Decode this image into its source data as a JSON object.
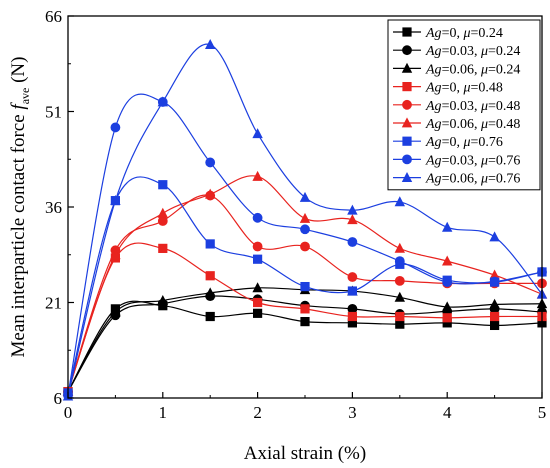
{
  "chart_data": {
    "type": "line",
    "xlabel": "Axial strain (%)",
    "ylabel_main": "Mean interparticle contact force ",
    "ylabel_symbol": "f",
    "ylabel_sub": "ave",
    "ylabel_unit": " (N)",
    "xlim": [
      0,
      5
    ],
    "ylim": [
      6,
      66
    ],
    "xticks": [
      "0",
      "1",
      "2",
      "3",
      "4",
      "5"
    ],
    "yticks": [
      "6",
      "21",
      "36",
      "51",
      "66"
    ],
    "x": [
      0,
      0.5,
      1,
      1.5,
      2,
      2.5,
      3,
      3.5,
      4,
      4.5,
      5
    ],
    "legend_position": "top-right",
    "series": [
      {
        "name": "Ag=0, μ=0.24",
        "ag": "0",
        "mu": "0.24",
        "color": "#000000",
        "marker": "square",
        "values": [
          7.0,
          20.0,
          20.5,
          18.8,
          19.3,
          18.0,
          17.8,
          17.6,
          17.8,
          17.4,
          17.8
        ]
      },
      {
        "name": "Ag=0.03, μ=0.24",
        "ag": "0.03",
        "mu": "0.24",
        "color": "#000000",
        "marker": "circle",
        "values": [
          7.0,
          19.0,
          20.8,
          22.0,
          21.5,
          20.5,
          20.0,
          19.2,
          19.6,
          20.0,
          19.5
        ]
      },
      {
        "name": "Ag=0.06, μ=0.24",
        "ag": "0.06",
        "mu": "0.24",
        "color": "#000000",
        "marker": "triangle",
        "values": [
          7.0,
          19.5,
          21.3,
          22.5,
          23.3,
          23.0,
          22.8,
          21.8,
          20.3,
          20.7,
          20.8
        ]
      },
      {
        "name": "Ag=0, μ=0.48",
        "ag": "0",
        "mu": "0.48",
        "color": "#e8231f",
        "marker": "square",
        "values": [
          7.0,
          28.0,
          29.5,
          25.2,
          21.0,
          20.0,
          18.8,
          18.8,
          18.6,
          18.8,
          18.8
        ]
      },
      {
        "name": "Ag=0.03, μ=0.48",
        "ag": "0.03",
        "mu": "0.48",
        "color": "#e8231f",
        "marker": "circle",
        "values": [
          7.0,
          29.2,
          33.8,
          37.8,
          29.8,
          29.8,
          25.0,
          24.4,
          24.0,
          24.0,
          24.0
        ]
      },
      {
        "name": "Ag=0.06, μ=0.48",
        "ag": "0.06",
        "mu": "0.48",
        "color": "#e8231f",
        "marker": "triangle",
        "values": [
          7.0,
          28.5,
          35.0,
          38.0,
          40.8,
          34.2,
          34.0,
          29.5,
          27.5,
          25.3,
          22.3
        ]
      },
      {
        "name": "Ag=0, μ=0.76",
        "ag": "0",
        "mu": "0.76",
        "color": "#1c3fe0",
        "marker": "square",
        "values": [
          6.8,
          37.0,
          39.5,
          30.2,
          27.8,
          23.5,
          22.8,
          27.0,
          24.5,
          24.2,
          25.8
        ]
      },
      {
        "name": "Ag=0.03, μ=0.76",
        "ag": "0.03",
        "mu": "0.76",
        "color": "#1c3fe0",
        "marker": "circle",
        "values": [
          6.5,
          48.5,
          52.5,
          43.0,
          34.3,
          32.5,
          30.5,
          27.5,
          24.2,
          24.3,
          25.8
        ]
      },
      {
        "name": "Ag=0.06, μ=0.76",
        "ag": "0.06",
        "mu": "0.76",
        "color": "#1c3fe0",
        "marker": "triangle",
        "values": [
          6.3,
          37.0,
          52.5,
          61.5,
          47.5,
          37.5,
          35.5,
          36.8,
          32.8,
          31.3,
          22.3
        ]
      }
    ]
  }
}
